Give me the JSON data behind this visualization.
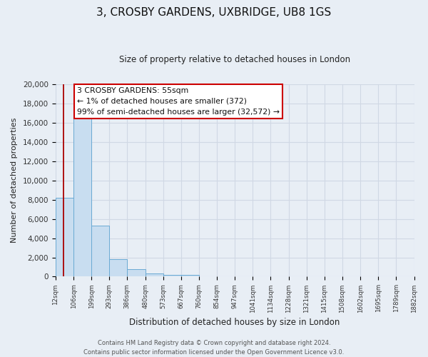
{
  "title": "3, CROSBY GARDENS, UXBRIDGE, UB8 1GS",
  "subtitle": "Size of property relative to detached houses in London",
  "xlabel": "Distribution of detached houses by size in London",
  "ylabel": "Number of detached properties",
  "bar_color": "#c8ddf0",
  "bar_edge_color": "#6aaad4",
  "background_color": "#e8eef5",
  "grid_color": "#d0d8e4",
  "red_line_x": 55,
  "annotation_line1": "3 CROSBY GARDENS: 55sqm",
  "annotation_line2": "← 1% of detached houses are smaller (372)",
  "annotation_line3": "99% of semi-detached houses are larger (32,572) →",
  "annotation_box_color": "#ffffff",
  "annotation_box_edge_color": "#cc0000",
  "footer_line1": "Contains HM Land Registry data © Crown copyright and database right 2024.",
  "footer_line2": "Contains public sector information licensed under the Open Government Licence v3.0.",
  "bin_edges": [
    12,
    106,
    199,
    293,
    386,
    480,
    573,
    667,
    760,
    854,
    947,
    1041,
    1134,
    1228,
    1321,
    1415,
    1508,
    1602,
    1695,
    1789,
    1882
  ],
  "bar_heights": [
    8200,
    16500,
    5300,
    1800,
    800,
    300,
    200,
    200,
    0,
    0,
    0,
    0,
    0,
    0,
    0,
    0,
    0,
    0,
    0,
    0
  ],
  "ylim": [
    0,
    20000
  ],
  "yticks": [
    0,
    2000,
    4000,
    6000,
    8000,
    10000,
    12000,
    14000,
    16000,
    18000,
    20000
  ],
  "xtick_labels": [
    "12sqm",
    "106sqm",
    "199sqm",
    "293sqm",
    "386sqm",
    "480sqm",
    "573sqm",
    "667sqm",
    "760sqm",
    "854sqm",
    "947sqm",
    "1041sqm",
    "1134sqm",
    "1228sqm",
    "1321sqm",
    "1415sqm",
    "1508sqm",
    "1602sqm",
    "1695sqm",
    "1789sqm",
    "1882sqm"
  ]
}
